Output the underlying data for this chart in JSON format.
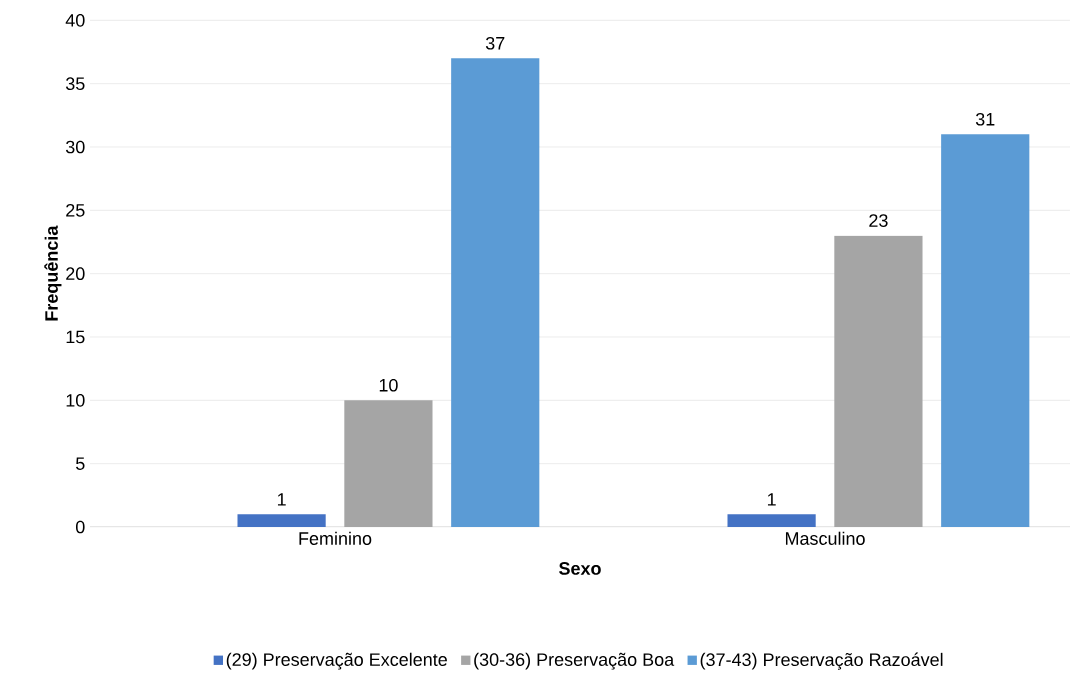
{
  "chart_data": {
    "type": "bar",
    "xlabel": "Sexo",
    "ylabel": "Frequência",
    "categories": [
      "Feminino",
      "Masculino"
    ],
    "series": [
      {
        "name": "(29) Preservação Excelente",
        "color": "#4472c4",
        "values": [
          1,
          1
        ]
      },
      {
        "name": "(30-36) Preservação Boa",
        "color": "#a5a5a5",
        "values": [
          10,
          23
        ]
      },
      {
        "name": "(37-43) Preservação Razoável",
        "color": "#5b9bd5",
        "values": [
          37,
          31
        ]
      }
    ],
    "ylim": [
      0,
      40
    ],
    "yticks": [
      0,
      5,
      10,
      15,
      20,
      25,
      30,
      35,
      40
    ],
    "grid": "y",
    "legend": "bottom",
    "data_labels": true
  }
}
